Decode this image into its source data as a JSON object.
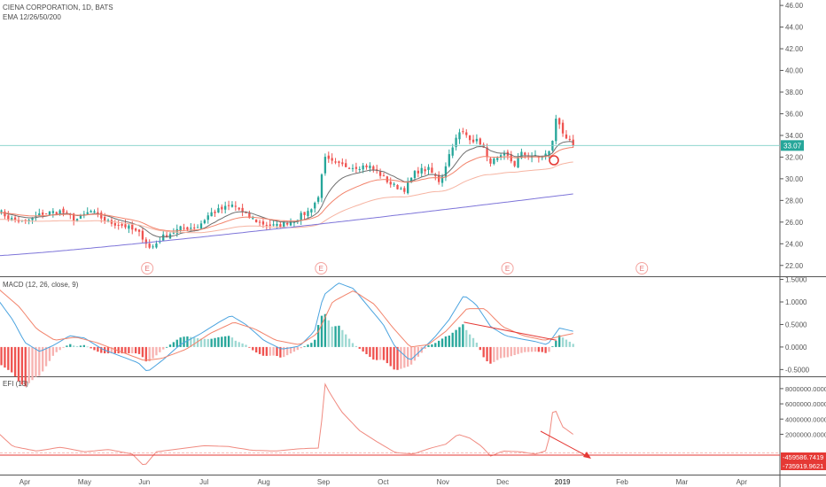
{
  "header": {
    "symbol_line": "CIENA CORPORATION, 1D, BATS",
    "ema_line": "EMA 12/26/50/200"
  },
  "panes": {
    "macd_label": "MACD (12, 26, close, 9)",
    "efi_label": "EFI (13)"
  },
  "colors": {
    "up": "#26a69a",
    "down": "#ef5350",
    "up_light": "#9ed9d3",
    "down_light": "#f7b2b0",
    "ema12": "#6f6f6f",
    "ema26": "#f2836b",
    "ema50": "#f6b4a2",
    "ema200": "#7e75d9",
    "macd": "#4aa3df",
    "signal": "#f2836b",
    "efi": "#f08a80",
    "alert": "#e53935",
    "price_badge": "#26a69a"
  },
  "chart_data": [
    {
      "type": "candlestick",
      "pane": "price",
      "title": "CIENA CORPORATION, 1D, BATS",
      "ylim": [
        21,
        46.5
      ],
      "yticks": [
        "22.00",
        "24.00",
        "26.00",
        "28.00",
        "30.00",
        "32.00",
        "34.00",
        "36.00",
        "38.00",
        "40.00",
        "42.00",
        "44.00",
        "46.00"
      ],
      "last_price": "33.07",
      "earnings_markers": [
        "E",
        "E",
        "E",
        "E"
      ],
      "earnings_months": [
        2.05,
        4.96,
        8.08,
        10.33
      ],
      "ohlc_close_anchors": [
        {
          "m": -0.45,
          "v": 27.1
        },
        {
          "m": -0.25,
          "v": 26.3
        },
        {
          "m": 0.0,
          "v": 26.0
        },
        {
          "m": 0.3,
          "v": 26.8
        },
        {
          "m": 0.6,
          "v": 27.0
        },
        {
          "m": 0.85,
          "v": 26.2
        },
        {
          "m": 1.1,
          "v": 27.0
        },
        {
          "m": 1.4,
          "v": 26.0
        },
        {
          "m": 1.7,
          "v": 25.6
        },
        {
          "m": 1.95,
          "v": 24.8
        },
        {
          "m": 2.1,
          "v": 23.5
        },
        {
          "m": 2.3,
          "v": 24.6
        },
        {
          "m": 2.6,
          "v": 25.4
        },
        {
          "m": 2.9,
          "v": 25.6
        },
        {
          "m": 3.1,
          "v": 26.8
        },
        {
          "m": 3.35,
          "v": 27.3
        },
        {
          "m": 3.5,
          "v": 27.6
        },
        {
          "m": 3.7,
          "v": 26.6
        },
        {
          "m": 3.95,
          "v": 25.9
        },
        {
          "m": 4.2,
          "v": 25.6
        },
        {
          "m": 4.5,
          "v": 26.2
        },
        {
          "m": 4.75,
          "v": 27.0
        },
        {
          "m": 4.92,
          "v": 28.3
        },
        {
          "m": 5.0,
          "v": 31.9
        },
        {
          "m": 5.2,
          "v": 31.3
        },
        {
          "m": 5.5,
          "v": 31.1
        },
        {
          "m": 5.75,
          "v": 31.2
        },
        {
          "m": 5.95,
          "v": 30.4
        },
        {
          "m": 6.15,
          "v": 29.4
        },
        {
          "m": 6.35,
          "v": 29.0
        },
        {
          "m": 6.55,
          "v": 30.7
        },
        {
          "m": 6.75,
          "v": 30.9
        },
        {
          "m": 6.95,
          "v": 29.7
        },
        {
          "m": 7.15,
          "v": 33.0
        },
        {
          "m": 7.3,
          "v": 34.4
        },
        {
          "m": 7.5,
          "v": 33.6
        },
        {
          "m": 7.65,
          "v": 33.3
        },
        {
          "m": 7.75,
          "v": 31.6
        },
        {
          "m": 7.9,
          "v": 31.7
        },
        {
          "m": 8.05,
          "v": 32.2
        },
        {
          "m": 8.2,
          "v": 31.3
        },
        {
          "m": 8.3,
          "v": 32.3
        },
        {
          "m": 8.45,
          "v": 32.2
        },
        {
          "m": 8.6,
          "v": 31.9
        },
        {
          "m": 8.8,
          "v": 32.5
        },
        {
          "m": 8.9,
          "v": 35.7
        },
        {
          "m": 9.0,
          "v": 34.4
        },
        {
          "m": 9.1,
          "v": 33.5
        },
        {
          "m": 9.18,
          "v": 33.07
        }
      ],
      "ema200_range": [
        22.9,
        28.6
      ],
      "x_ticks": [
        "Apr",
        "May",
        "Jun",
        "Jul",
        "Aug",
        "Sep",
        "Oct",
        "Nov",
        "Dec",
        "2019",
        "Feb",
        "Mar",
        "Apr"
      ]
    },
    {
      "type": "macd",
      "pane": "macd",
      "title": "MACD (12, 26, close, 9)",
      "ylim": [
        -0.65,
        1.55
      ],
      "yticks": [
        "1.5000",
        "1.0000",
        "0.5000",
        "0.0000",
        "-0.5000"
      ],
      "macd_anchors": [
        {
          "m": -0.45,
          "v": 1.05
        },
        {
          "m": -0.2,
          "v": 0.6
        },
        {
          "m": 0.0,
          "v": 0.1
        },
        {
          "m": 0.25,
          "v": -0.1
        },
        {
          "m": 0.5,
          "v": 0.05
        },
        {
          "m": 0.75,
          "v": 0.25
        },
        {
          "m": 1.0,
          "v": 0.2
        },
        {
          "m": 1.3,
          "v": -0.05
        },
        {
          "m": 1.6,
          "v": -0.2
        },
        {
          "m": 1.9,
          "v": -0.35
        },
        {
          "m": 2.05,
          "v": -0.55
        },
        {
          "m": 2.3,
          "v": -0.3
        },
        {
          "m": 2.6,
          "v": 0.05
        },
        {
          "m": 2.95,
          "v": 0.3
        },
        {
          "m": 3.25,
          "v": 0.55
        },
        {
          "m": 3.45,
          "v": 0.7
        },
        {
          "m": 3.7,
          "v": 0.5
        },
        {
          "m": 4.0,
          "v": 0.15
        },
        {
          "m": 4.3,
          "v": -0.05
        },
        {
          "m": 4.6,
          "v": 0.02
        },
        {
          "m": 4.85,
          "v": 0.35
        },
        {
          "m": 5.0,
          "v": 1.15
        },
        {
          "m": 5.25,
          "v": 1.42
        },
        {
          "m": 5.5,
          "v": 1.3
        },
        {
          "m": 5.75,
          "v": 0.9
        },
        {
          "m": 6.0,
          "v": 0.5
        },
        {
          "m": 6.2,
          "v": 0.0
        },
        {
          "m": 6.45,
          "v": -0.3
        },
        {
          "m": 6.65,
          "v": -0.05
        },
        {
          "m": 6.85,
          "v": 0.2
        },
        {
          "m": 7.1,
          "v": 0.6
        },
        {
          "m": 7.35,
          "v": 1.15
        },
        {
          "m": 7.55,
          "v": 0.95
        },
        {
          "m": 7.8,
          "v": 0.45
        },
        {
          "m": 8.05,
          "v": 0.25
        },
        {
          "m": 8.3,
          "v": 0.18
        },
        {
          "m": 8.55,
          "v": 0.12
        },
        {
          "m": 8.75,
          "v": 0.05
        },
        {
          "m": 8.95,
          "v": 0.42
        },
        {
          "m": 9.18,
          "v": 0.35
        }
      ],
      "signal_anchors": [
        {
          "m": -0.45,
          "v": 1.3
        },
        {
          "m": -0.1,
          "v": 0.9
        },
        {
          "m": 0.2,
          "v": 0.4
        },
        {
          "m": 0.5,
          "v": 0.15
        },
        {
          "m": 0.85,
          "v": 0.22
        },
        {
          "m": 1.2,
          "v": 0.1
        },
        {
          "m": 1.6,
          "v": -0.1
        },
        {
          "m": 2.0,
          "v": -0.3
        },
        {
          "m": 2.3,
          "v": -0.25
        },
        {
          "m": 2.7,
          "v": -0.05
        },
        {
          "m": 3.1,
          "v": 0.3
        },
        {
          "m": 3.5,
          "v": 0.55
        },
        {
          "m": 3.85,
          "v": 0.4
        },
        {
          "m": 4.2,
          "v": 0.15
        },
        {
          "m": 4.6,
          "v": 0.05
        },
        {
          "m": 4.9,
          "v": 0.3
        },
        {
          "m": 5.15,
          "v": 1.0
        },
        {
          "m": 5.5,
          "v": 1.25
        },
        {
          "m": 5.85,
          "v": 0.95
        },
        {
          "m": 6.15,
          "v": 0.45
        },
        {
          "m": 6.45,
          "v": 0.0
        },
        {
          "m": 6.75,
          "v": 0.05
        },
        {
          "m": 7.05,
          "v": 0.35
        },
        {
          "m": 7.4,
          "v": 0.85
        },
        {
          "m": 7.7,
          "v": 0.85
        },
        {
          "m": 8.0,
          "v": 0.45
        },
        {
          "m": 8.35,
          "v": 0.25
        },
        {
          "m": 8.7,
          "v": 0.15
        },
        {
          "m": 9.0,
          "v": 0.25
        },
        {
          "m": 9.18,
          "v": 0.3
        }
      ],
      "divergence_line": [
        {
          "m": 7.35,
          "v": 0.55
        },
        {
          "m": 8.9,
          "v": 0.15
        }
      ]
    },
    {
      "type": "line",
      "pane": "efi",
      "title": "EFI (13)",
      "ylim": [
        -3300000,
        9500000
      ],
      "yticks": [
        "8000000.0000",
        "6000000.0000",
        "4000000.0000",
        "2000000.0000"
      ],
      "labels": [
        "-459586.7419",
        "-735919.9621"
      ],
      "values_marked": [
        -459586.7419,
        -735919.9621
      ],
      "efi_anchors": [
        {
          "m": -0.45,
          "v": 2200000
        },
        {
          "m": -0.2,
          "v": 400000
        },
        {
          "m": 0.2,
          "v": -200000
        },
        {
          "m": 0.6,
          "v": 300000
        },
        {
          "m": 1.0,
          "v": -300000
        },
        {
          "m": 1.4,
          "v": 0
        },
        {
          "m": 1.8,
          "v": -600000
        },
        {
          "m": 2.0,
          "v": -2200000
        },
        {
          "m": 2.2,
          "v": -300000
        },
        {
          "m": 2.6,
          "v": 100000
        },
        {
          "m": 3.0,
          "v": 500000
        },
        {
          "m": 3.4,
          "v": 400000
        },
        {
          "m": 3.8,
          "v": -100000
        },
        {
          "m": 4.2,
          "v": -200000
        },
        {
          "m": 4.6,
          "v": 100000
        },
        {
          "m": 4.95,
          "v": 200000
        },
        {
          "m": 5.0,
          "v": 9000000
        },
        {
          "m": 5.1,
          "v": 7500000
        },
        {
          "m": 5.3,
          "v": 5000000
        },
        {
          "m": 5.6,
          "v": 2500000
        },
        {
          "m": 5.9,
          "v": 1000000
        },
        {
          "m": 6.2,
          "v": -400000
        },
        {
          "m": 6.5,
          "v": -600000
        },
        {
          "m": 6.8,
          "v": 200000
        },
        {
          "m": 7.05,
          "v": 700000
        },
        {
          "m": 7.25,
          "v": 2000000
        },
        {
          "m": 7.45,
          "v": 1500000
        },
        {
          "m": 7.65,
          "v": 400000
        },
        {
          "m": 7.8,
          "v": -900000
        },
        {
          "m": 8.0,
          "v": -200000
        },
        {
          "m": 8.3,
          "v": -300000
        },
        {
          "m": 8.55,
          "v": -600000
        },
        {
          "m": 8.75,
          "v": -100000
        },
        {
          "m": 8.85,
          "v": 5800000
        },
        {
          "m": 9.0,
          "v": 3000000
        },
        {
          "m": 9.18,
          "v": 2000000
        }
      ]
    }
  ]
}
